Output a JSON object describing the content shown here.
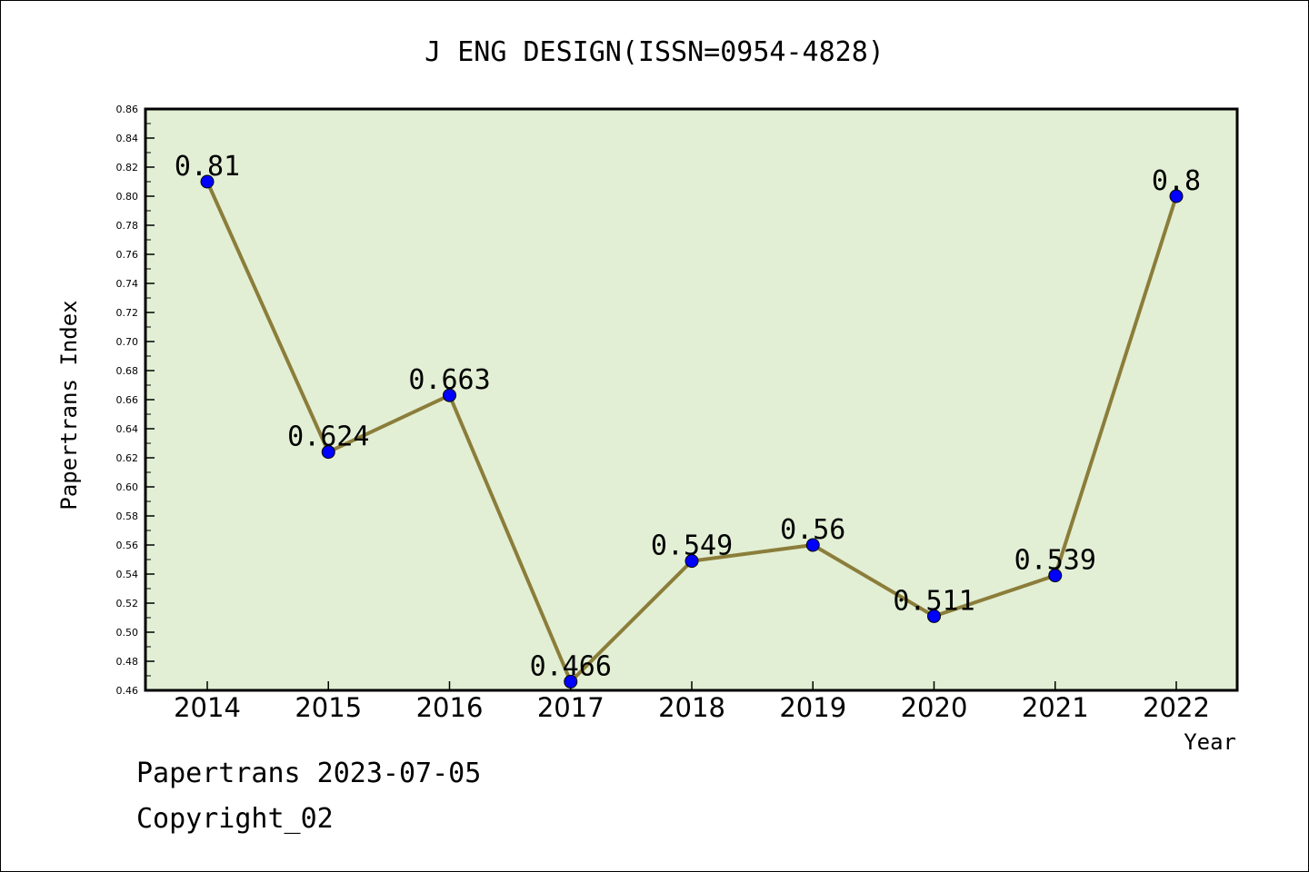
{
  "footer": {
    "date_line": "Papertrans 2023-07-05",
    "copyright": "Copyright_02"
  },
  "chart_data": {
    "type": "line",
    "title": "J ENG DESIGN(ISSN=0954-4828)",
    "xlabel": "Year",
    "ylabel": "Papertrans Index",
    "categories": [
      "2014",
      "2015",
      "2016",
      "2017",
      "2018",
      "2019",
      "2020",
      "2021",
      "2022"
    ],
    "series": [
      {
        "values": [
          0.81,
          0.624,
          0.663,
          0.466,
          0.549,
          0.56,
          0.511,
          0.539,
          0.8
        ],
        "labels": [
          "0.81",
          "0.624",
          "0.663",
          "0.466",
          "0.549",
          "0.56",
          "0.511",
          "0.539",
          "0.8"
        ]
      }
    ],
    "ylim": [
      0.46,
      0.86
    ],
    "yticks": [
      "0.46",
      "0.48",
      "0.50",
      "0.52",
      "0.54",
      "0.56",
      "0.58",
      "0.60",
      "0.62",
      "0.64",
      "0.66",
      "0.68",
      "0.70",
      "0.72",
      "0.74",
      "0.76",
      "0.78",
      "0.80",
      "0.82",
      "0.84",
      "0.86"
    ],
    "colors": {
      "plot_background": "#e2efd4",
      "line": "#8b7d3a",
      "marker": "#0000ff"
    },
    "grid": false,
    "legend": "none"
  }
}
